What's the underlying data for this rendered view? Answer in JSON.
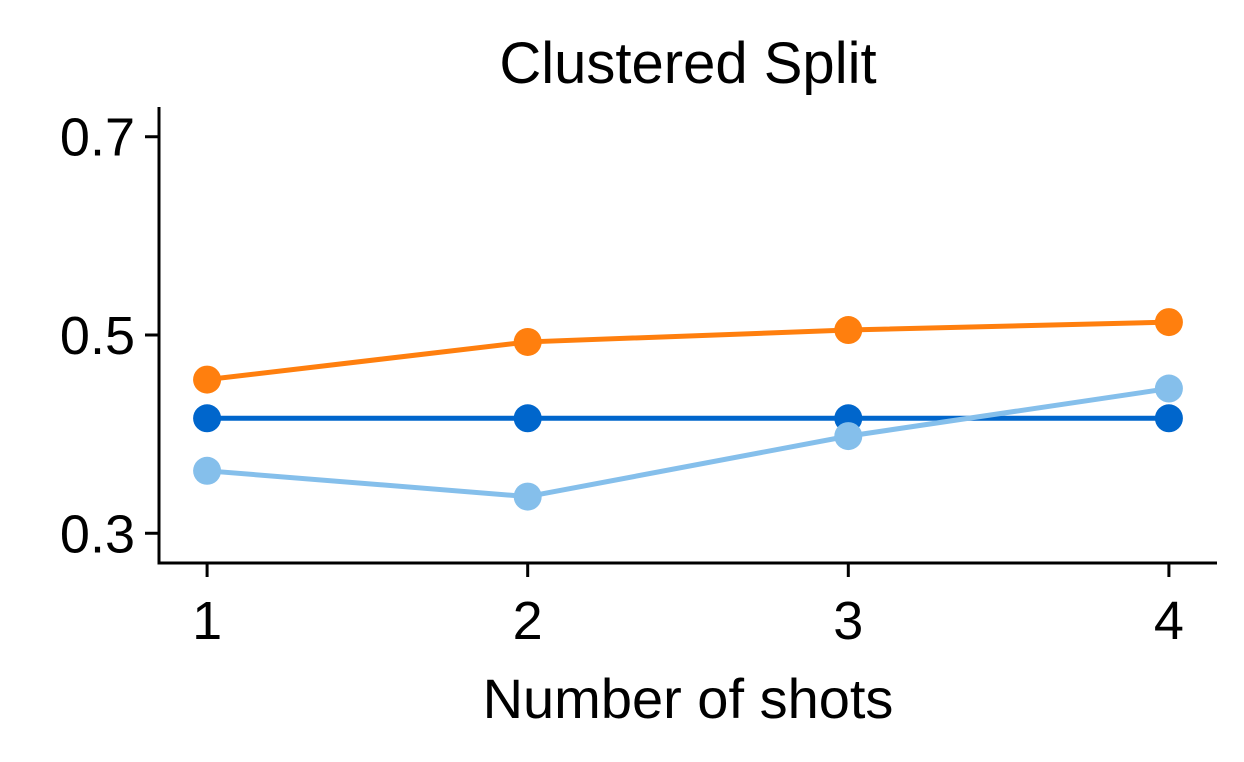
{
  "chart_data": {
    "type": "line",
    "title": "Clustered Split",
    "xlabel": "Number of shots",
    "ylabel": "",
    "x": [
      1,
      2,
      3,
      4
    ],
    "x_ticks": [
      "1",
      "2",
      "3",
      "4"
    ],
    "y_ticks": [
      {
        "value": 0.3,
        "label": "0.3"
      },
      {
        "value": 0.5,
        "label": "0.5"
      },
      {
        "value": 0.7,
        "label": "0.7"
      }
    ],
    "xlim": [
      0.85,
      4.15
    ],
    "ylim": [
      0.27,
      0.73
    ],
    "grid": false,
    "legend": "none",
    "series": [
      {
        "color": "#ff7f0e",
        "values": [
          0.455,
          0.493,
          0.505,
          0.513
        ]
      },
      {
        "color": "#0066cc",
        "values": [
          0.416,
          0.416,
          0.416,
          0.416
        ]
      },
      {
        "color": "#85bfeb",
        "values": [
          0.363,
          0.337,
          0.398,
          0.446
        ]
      }
    ]
  }
}
